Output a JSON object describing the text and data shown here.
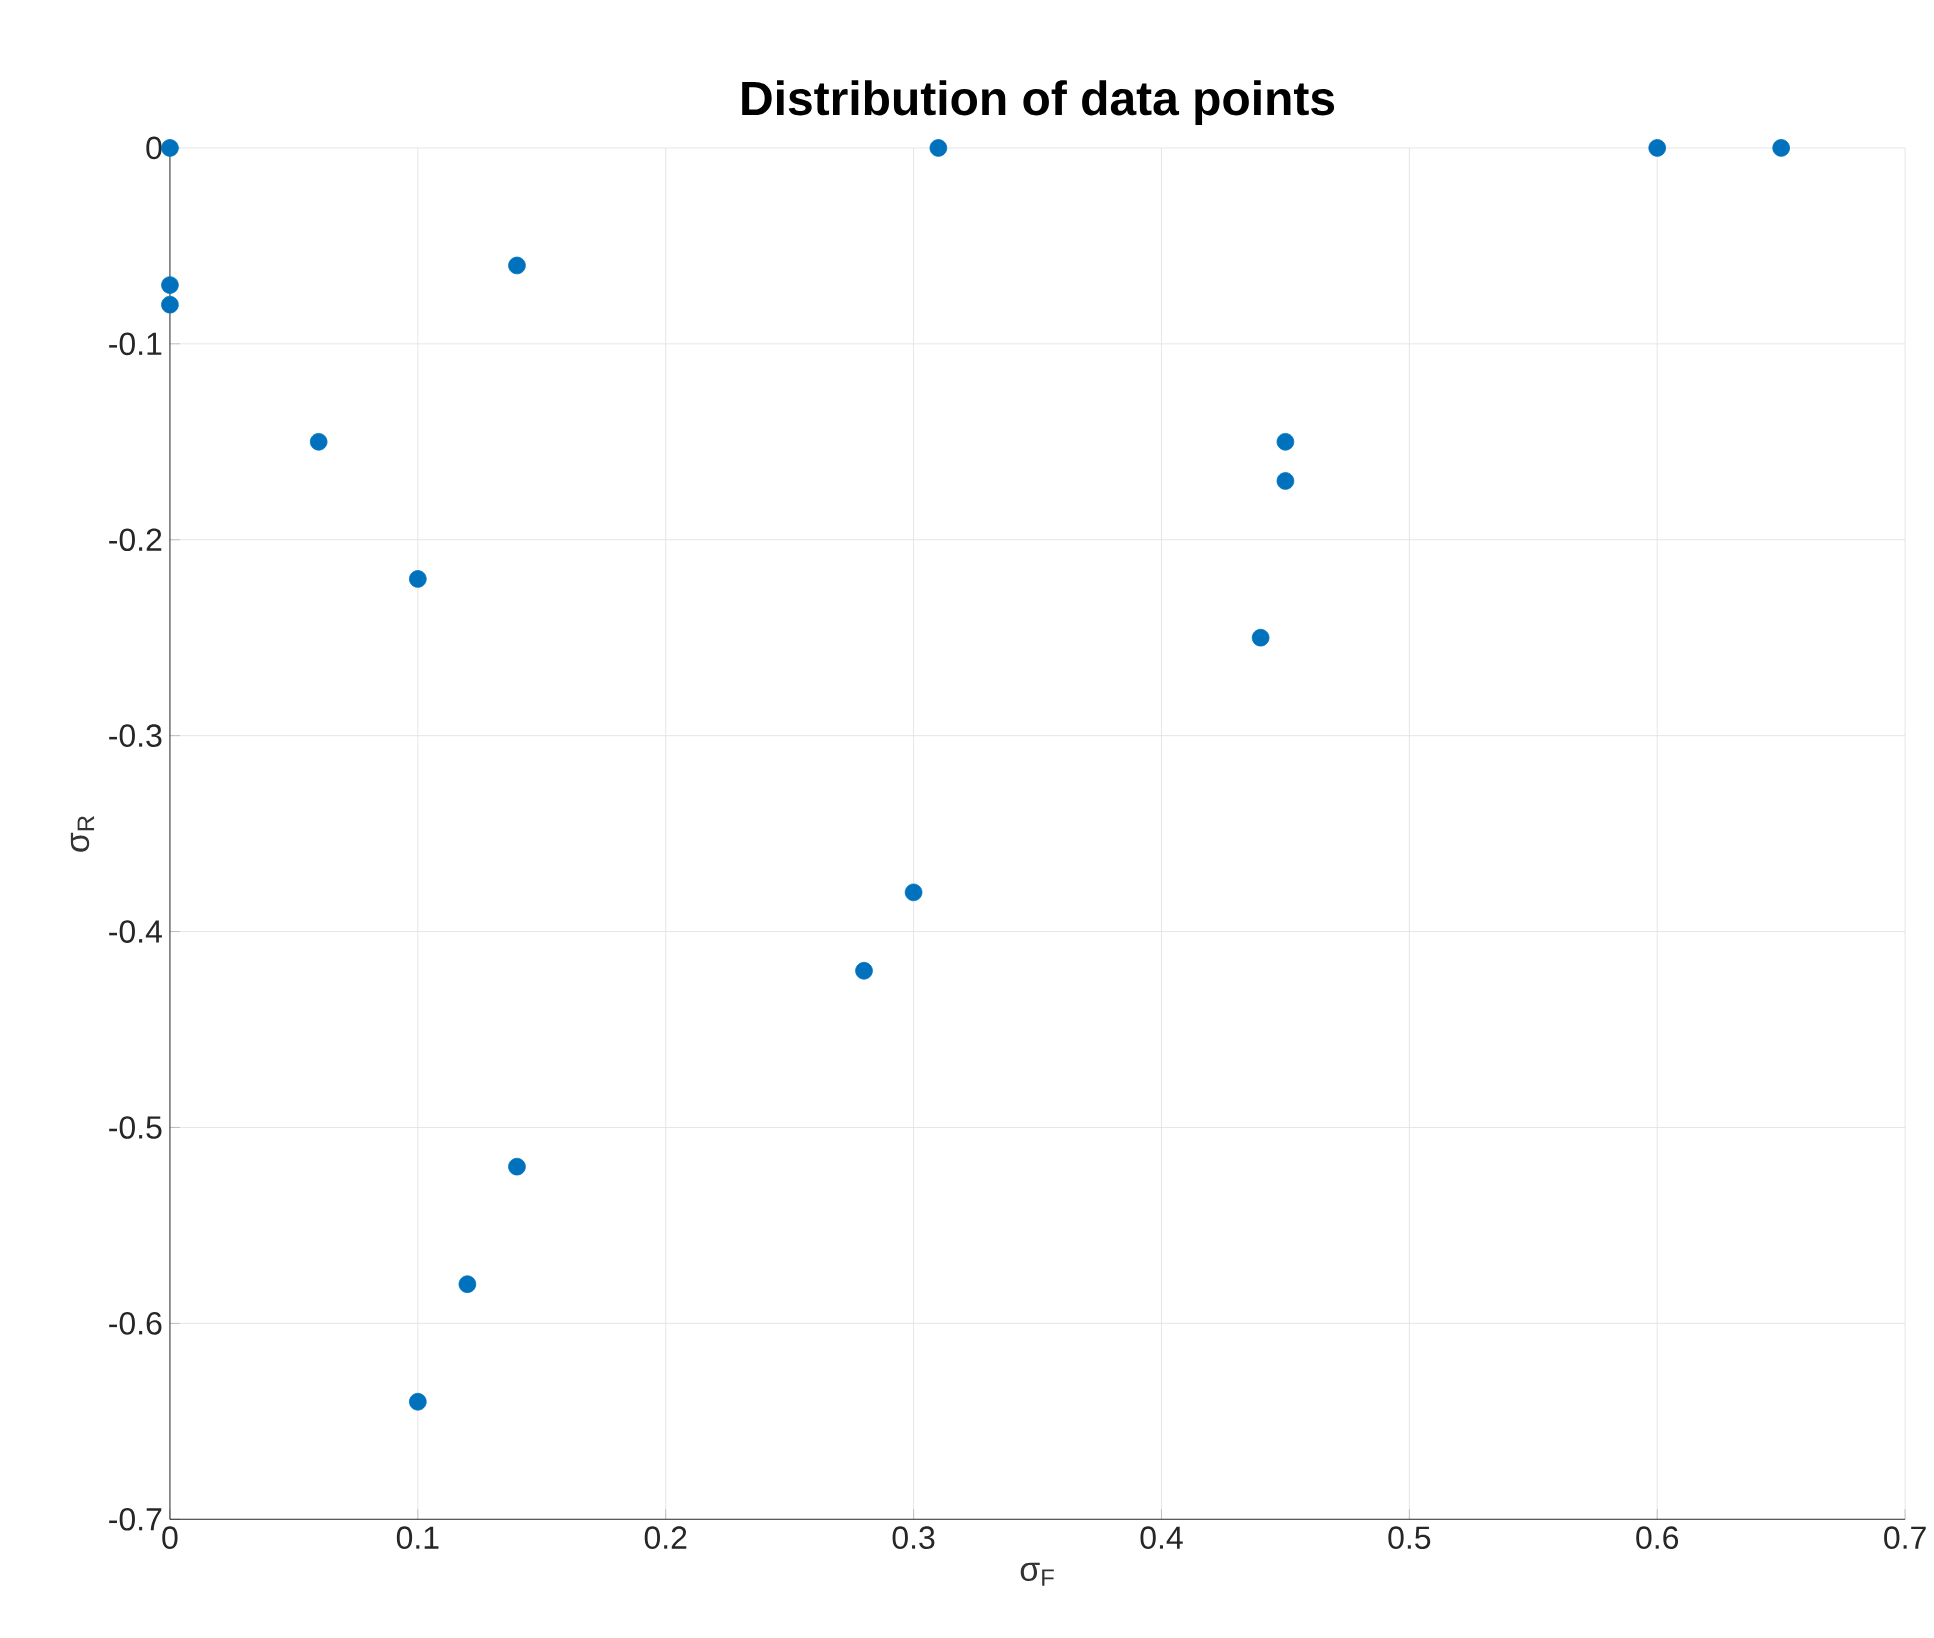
{
  "chart_data": {
    "type": "scatter",
    "title": "Distribution of data points",
    "xlabel": "σ$_{F}$",
    "ylabel": "σ$_{R}$",
    "x": [
      0,
      0,
      0,
      0.14,
      0.06,
      0.1,
      0.31,
      0.6,
      0.65,
      0.45,
      0.45,
      0.44,
      0.3,
      0.28,
      0.14,
      0.12,
      0.1
    ],
    "series": [
      {
        "color": "#0072bd",
        "values": [
          0,
          -0.07,
          -0.08,
          -0.06,
          -0.15,
          -0.22,
          0,
          0,
          0,
          -0.15,
          -0.17,
          -0.25,
          -0.38,
          -0.42,
          -0.52,
          -0.58,
          -0.64
        ]
      }
    ],
    "xlim": [
      0,
      0.7
    ],
    "ylim": [
      -0.7,
      0
    ],
    "xticks": [
      0,
      0.1,
      0.2,
      0.3,
      0.4,
      0.5,
      0.6,
      0.7
    ],
    "yticks": [
      -0.7,
      -0.6,
      -0.5,
      -0.4,
      -0.3,
      -0.2,
      -0.1,
      0
    ],
    "grid": true
  }
}
